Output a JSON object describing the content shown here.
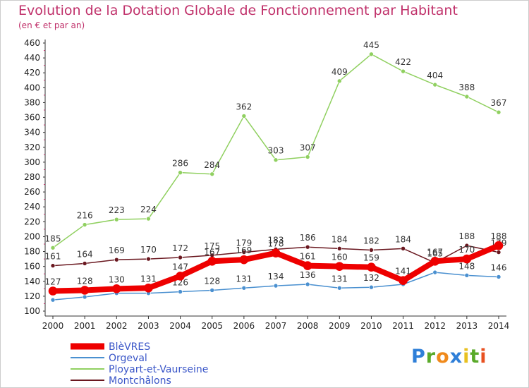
{
  "title": "Evolution de la Dotation Globale de Fonctionnement par Habitant",
  "subtitle": "(en € et par an)",
  "brand": {
    "letters": [
      {
        "ch": "P",
        "color": "#2f7fd8"
      },
      {
        "ch": "r",
        "color": "#5aaa2a"
      },
      {
        "ch": "o",
        "color": "#f08a1c"
      },
      {
        "ch": "x",
        "color": "#2f7fd8"
      },
      {
        "ch": "i",
        "color": "#e8c020"
      },
      {
        "ch": "t",
        "color": "#5aaa2a"
      },
      {
        "ch": "i",
        "color": "#e85020"
      }
    ]
  },
  "chart_data": {
    "type": "line",
    "x": [
      "2000",
      "2001",
      "2002",
      "2003",
      "2004",
      "2005",
      "2006",
      "2007",
      "2008",
      "2009",
      "2010",
      "2011",
      "2012",
      "2013",
      "2014"
    ],
    "ylim": [
      100,
      460
    ],
    "yticks": [
      100,
      120,
      140,
      160,
      180,
      200,
      220,
      240,
      260,
      280,
      300,
      320,
      340,
      360,
      380,
      400,
      420,
      440,
      460
    ],
    "grid": false,
    "legend_position": "bottom-left",
    "series": [
      {
        "name": "Orgeval",
        "color": "#4a90d0",
        "width": 1.5,
        "values": [
          115,
          119,
          124,
          124,
          126,
          128,
          131,
          134,
          136,
          131,
          132,
          136,
          152,
          148,
          146
        ],
        "labels": [
          null,
          null,
          null,
          null,
          126,
          128,
          131,
          134,
          136,
          131,
          132,
          null,
          null,
          148,
          146
        ]
      },
      {
        "name": "Ployart-et-Vaurseine",
        "color": "#90d060",
        "width": 1.5,
        "values": [
          185,
          216,
          223,
          224,
          286,
          284,
          362,
          303,
          307,
          409,
          445,
          422,
          404,
          388,
          367
        ],
        "labels": [
          185,
          216,
          223,
          224,
          286,
          284,
          362,
          303,
          307,
          409,
          445,
          422,
          404,
          388,
          367
        ]
      },
      {
        "name": "Montchâlons",
        "color": "#6a1820",
        "width": 1.5,
        "values": [
          161,
          164,
          169,
          170,
          172,
          175,
          179,
          183,
          186,
          184,
          182,
          184,
          165,
          188,
          179
        ],
        "labels": [
          161,
          164,
          169,
          170,
          172,
          175,
          179,
          183,
          186,
          184,
          182,
          184,
          165,
          188,
          179
        ]
      },
      {
        "name": "BlèVRES",
        "color": "#ee0000",
        "width": 8,
        "values": [
          127,
          128,
          130,
          131,
          147,
          167,
          169,
          178,
          161,
          160,
          159,
          141,
          167,
          170,
          188
        ],
        "labels": [
          127,
          128,
          130,
          131,
          147,
          167,
          169,
          178,
          161,
          160,
          159,
          141,
          167,
          170,
          188
        ]
      }
    ],
    "legend_order": [
      "BlèVRES",
      "Orgeval",
      "Ployart-et-Vaurseine",
      "Montchâlons"
    ]
  }
}
